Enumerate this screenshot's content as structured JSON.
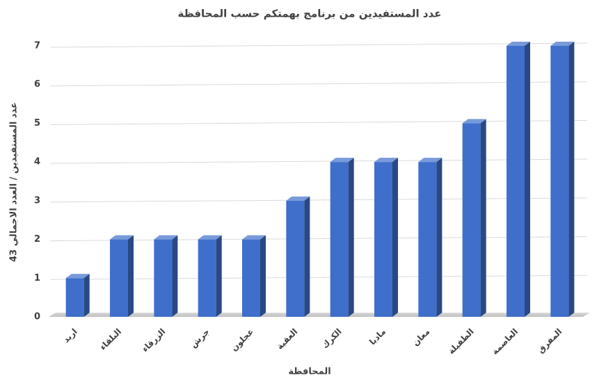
{
  "chart_data": {
    "type": "bar3d",
    "title": "عدد المستفيدين من برنامج بهمتكم حسب المحافظة",
    "x_label": "المحافظة",
    "y_label": "عدد المستفيدين / العدد الاجمالي 43",
    "categories": [
      "اربد",
      "البلقاء",
      "الزرقاء",
      "جرش",
      "عجلون",
      "العقبة",
      "الكرك",
      "مادبا",
      "معان",
      "الطفيلة",
      "العاصمة",
      "المفرق"
    ],
    "values": [
      1,
      2,
      2,
      2,
      2,
      3,
      4,
      4,
      4,
      5,
      7,
      7
    ],
    "color": "#3f6fcb",
    "ylim": [
      0,
      7
    ],
    "yticks": [
      0,
      1,
      2,
      3,
      4,
      5,
      6,
      7
    ],
    "grid": true
  }
}
